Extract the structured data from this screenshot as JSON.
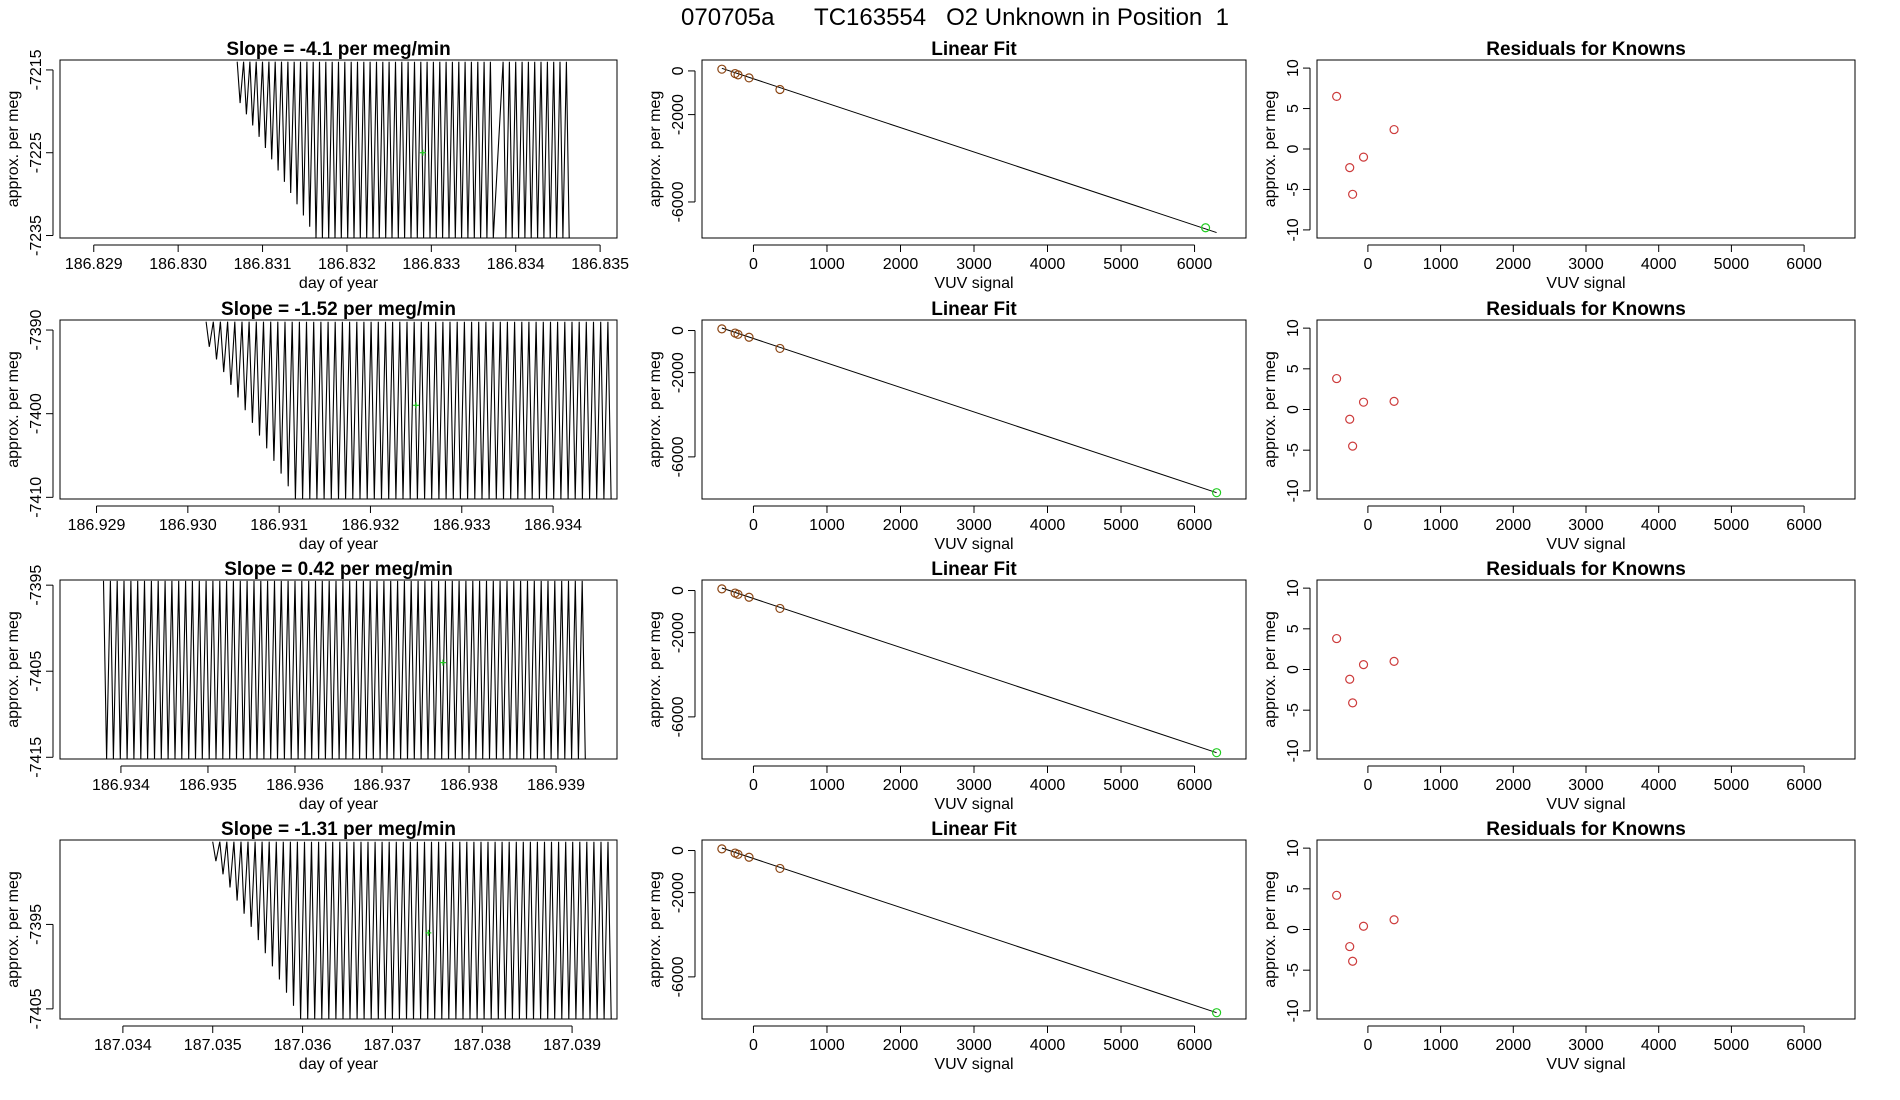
{
  "page": {
    "title": "070705a      TC163554   O2 Unknown in Position  1"
  },
  "colors": {
    "trace": "#000000",
    "known_points": "#8B4513",
    "residual_points": "#cd3c3c",
    "unknown_point": "#22cc22"
  },
  "chart_data": [
    {
      "type": "line",
      "role": "trace",
      "title": "Slope =  -4.1  per meg/min",
      "xlabel": "day of year",
      "ylabel": "approx. per meg",
      "xlim": [
        186.8286,
        186.8352
      ],
      "ylim": [
        -7235.3,
        -7213.8
      ],
      "x_ticks": [
        186.829,
        186.83,
        186.831,
        186.832,
        186.833,
        186.834,
        186.835
      ],
      "x_tick_labels": [
        "186.829",
        "186.830",
        "186.831",
        "186.832",
        "186.833",
        "186.834",
        "186.835"
      ],
      "y_ticks": [
        -7235,
        -7225,
        -7215
      ],
      "y_tick_labels": [
        "-7235",
        "-7225",
        "-7215"
      ],
      "trace_x_range": [
        186.8307,
        186.8346
      ],
      "trace_gap": [
        186.8337,
        186.8338
      ],
      "cycles": 52,
      "trace_top": -7214.0,
      "trace_bottom_min": -7235.3,
      "trace_bottom_start": -7219.0,
      "marker": {
        "x": 186.8329,
        "y": -7225.0
      }
    },
    {
      "type": "scatter",
      "role": "fit",
      "title": "Linear Fit",
      "xlabel": "VUV signal",
      "ylabel": "approx. per meg",
      "xlim": [
        -700,
        6700
      ],
      "ylim": [
        -7650,
        500
      ],
      "x_ticks": [
        0,
        1000,
        2000,
        3000,
        4000,
        5000,
        6000
      ],
      "x_tick_labels": [
        "0",
        "1000",
        "2000",
        "3000",
        "4000",
        "5000",
        "6000"
      ],
      "y_ticks": [
        -6000,
        -2000,
        0
      ],
      "y_tick_labels": [
        "-6000",
        "-2000",
        "0"
      ],
      "line": [
        [
          -430,
          120
        ],
        [
          6300,
          -7400
        ]
      ],
      "known_points": [
        [
          -430,
          80
        ],
        [
          -250,
          -120
        ],
        [
          -210,
          -180
        ],
        [
          -60,
          -320
        ],
        [
          360,
          -850
        ]
      ],
      "unknown_point": [
        6150,
        -7180
      ]
    },
    {
      "type": "scatter",
      "role": "residuals",
      "title": "Residuals for Knowns",
      "xlabel": "VUV signal",
      "ylabel": "approx. per meg",
      "xlim": [
        -700,
        6700
      ],
      "ylim": [
        -11,
        11
      ],
      "x_ticks": [
        0,
        1000,
        2000,
        3000,
        4000,
        5000,
        6000
      ],
      "x_tick_labels": [
        "0",
        "1000",
        "2000",
        "3000",
        "4000",
        "5000",
        "6000"
      ],
      "y_ticks": [
        -10,
        -5,
        0,
        5,
        10
      ],
      "y_tick_labels": [
        "-10",
        "-5",
        "0",
        "5",
        "10"
      ],
      "points": [
        [
          -430,
          6.5
        ],
        [
          -250,
          -2.3
        ],
        [
          -210,
          -5.6
        ],
        [
          -60,
          -1.0
        ],
        [
          360,
          2.4
        ]
      ]
    },
    {
      "type": "line",
      "role": "trace",
      "title": "Slope =  -1.52  per meg/min",
      "xlabel": "day of year",
      "ylabel": "approx. per meg",
      "xlim": [
        186.9286,
        186.9347
      ],
      "ylim": [
        -7410.2,
        -7388.8
      ],
      "x_ticks": [
        186.929,
        186.93,
        186.931,
        186.932,
        186.933,
        186.934
      ],
      "x_tick_labels": [
        "186.929",
        "186.930",
        "186.931",
        "186.932",
        "186.933",
        "186.934"
      ],
      "y_ticks": [
        -7410,
        -7400,
        -7390
      ],
      "y_tick_labels": [
        "-7410",
        "-7400",
        "-7390"
      ],
      "trace_x_range": [
        186.9302,
        186.9346
      ],
      "cycles": 56,
      "trace_top": -7389.0,
      "trace_bottom_min": -7410.2,
      "trace_bottom_start": -7392.0,
      "marker": {
        "x": 186.9325,
        "y": -7399.0
      }
    },
    {
      "type": "scatter",
      "role": "fit",
      "title": "Linear Fit",
      "xlabel": "VUV signal",
      "ylabel": "approx. per meg",
      "xlim": [
        -700,
        6700
      ],
      "ylim": [
        -8000,
        500
      ],
      "x_ticks": [
        0,
        1000,
        2000,
        3000,
        4000,
        5000,
        6000
      ],
      "x_tick_labels": [
        "0",
        "1000",
        "2000",
        "3000",
        "4000",
        "5000",
        "6000"
      ],
      "y_ticks": [
        -6000,
        -2000,
        0
      ],
      "y_tick_labels": [
        "-6000",
        "-2000",
        "0"
      ],
      "line": [
        [
          -430,
          120
        ],
        [
          6300,
          -7700
        ]
      ],
      "known_points": [
        [
          -430,
          80
        ],
        [
          -250,
          -120
        ],
        [
          -210,
          -180
        ],
        [
          -60,
          -320
        ],
        [
          360,
          -850
        ]
      ],
      "unknown_point": [
        6300,
        -7700
      ]
    },
    {
      "type": "scatter",
      "role": "residuals",
      "title": "Residuals for Knowns",
      "xlabel": "VUV signal",
      "ylabel": "approx. per meg",
      "xlim": [
        -700,
        6700
      ],
      "ylim": [
        -11,
        11
      ],
      "x_ticks": [
        0,
        1000,
        2000,
        3000,
        4000,
        5000,
        6000
      ],
      "x_tick_labels": [
        "0",
        "1000",
        "2000",
        "3000",
        "4000",
        "5000",
        "6000"
      ],
      "y_ticks": [
        -10,
        -5,
        0,
        5,
        10
      ],
      "y_tick_labels": [
        "-10",
        "-5",
        "0",
        "5",
        "10"
      ],
      "points": [
        [
          -430,
          3.8
        ],
        [
          -250,
          -1.2
        ],
        [
          -210,
          -4.5
        ],
        [
          -60,
          0.9
        ],
        [
          360,
          1.0
        ]
      ]
    },
    {
      "type": "line",
      "role": "trace",
      "title": "Slope =  0.42  per meg/min",
      "xlabel": "day of year",
      "ylabel": "approx. per meg",
      "xlim": [
        186.9333,
        186.9397
      ],
      "ylim": [
        -7415.2,
        -7394.4
      ],
      "x_ticks": [
        186.934,
        186.935,
        186.936,
        186.937,
        186.938,
        186.939
      ],
      "x_tick_labels": [
        "186.934",
        "186.935",
        "186.936",
        "186.937",
        "186.938",
        "186.939"
      ],
      "y_ticks": [
        -7415,
        -7405,
        -7395
      ],
      "y_tick_labels": [
        "-7415",
        "-7405",
        "-7395"
      ],
      "trace_x_range": [
        186.9338,
        186.9393
      ],
      "cycles": 70,
      "trace_top": -7394.5,
      "trace_bottom_min": -7415.2,
      "trace_bottom_start": -7415.2,
      "marker": {
        "x": 186.9377,
        "y": -7404.0
      }
    },
    {
      "type": "scatter",
      "role": "fit",
      "title": "Linear Fit",
      "xlabel": "VUV signal",
      "ylabel": "approx. per meg",
      "xlim": [
        -700,
        6700
      ],
      "ylim": [
        -8000,
        500
      ],
      "x_ticks": [
        0,
        1000,
        2000,
        3000,
        4000,
        5000,
        6000
      ],
      "x_tick_labels": [
        "0",
        "1000",
        "2000",
        "3000",
        "4000",
        "5000",
        "6000"
      ],
      "y_ticks": [
        -6000,
        -2000,
        0
      ],
      "y_tick_labels": [
        "-6000",
        "-2000",
        "0"
      ],
      "line": [
        [
          -430,
          120
        ],
        [
          6300,
          -7700
        ]
      ],
      "known_points": [
        [
          -430,
          80
        ],
        [
          -250,
          -120
        ],
        [
          -210,
          -180
        ],
        [
          -60,
          -320
        ],
        [
          360,
          -850
        ]
      ],
      "unknown_point": [
        6300,
        -7700
      ]
    },
    {
      "type": "scatter",
      "role": "residuals",
      "title": "Residuals for Knowns",
      "xlabel": "VUV signal",
      "ylabel": "approx. per meg",
      "xlim": [
        -700,
        6700
      ],
      "ylim": [
        -11,
        11
      ],
      "x_ticks": [
        0,
        1000,
        2000,
        3000,
        4000,
        5000,
        6000
      ],
      "x_tick_labels": [
        "0",
        "1000",
        "2000",
        "3000",
        "4000",
        "5000",
        "6000"
      ],
      "y_ticks": [
        -10,
        -5,
        0,
        5,
        10
      ],
      "y_tick_labels": [
        "-10",
        "-5",
        "0",
        "5",
        "10"
      ],
      "points": [
        [
          -430,
          3.8
        ],
        [
          -250,
          -1.2
        ],
        [
          -210,
          -4.1
        ],
        [
          -60,
          0.6
        ],
        [
          360,
          1.0
        ]
      ]
    },
    {
      "type": "line",
      "role": "trace",
      "title": "Slope =  -1.31  per meg/min",
      "xlabel": "day of year",
      "ylabel": "approx. per meg",
      "xlim": [
        187.0333,
        187.0395
      ],
      "ylim": [
        -7406.2,
        -7385.0
      ],
      "x_ticks": [
        187.034,
        187.035,
        187.036,
        187.037,
        187.038,
        187.039
      ],
      "x_tick_labels": [
        "187.034",
        "187.035",
        "187.036",
        "187.037",
        "187.038",
        "187.039"
      ],
      "y_ticks": [
        -7405,
        -7395
      ],
      "y_tick_labels": [
        "-7405",
        "-7395"
      ],
      "trace_x_range": [
        187.035,
        187.0394
      ],
      "cycles": 56,
      "trace_top": -7385.2,
      "trace_bottom_min": -7406.2,
      "trace_bottom_start": -7387.5,
      "marker": {
        "x": 187.0374,
        "y": -7396.0
      }
    },
    {
      "type": "scatter",
      "role": "fit",
      "title": "Linear Fit",
      "xlabel": "VUV signal",
      "ylabel": "approx. per meg",
      "xlim": [
        -700,
        6700
      ],
      "ylim": [
        -8000,
        500
      ],
      "x_ticks": [
        0,
        1000,
        2000,
        3000,
        4000,
        5000,
        6000
      ],
      "x_tick_labels": [
        "0",
        "1000",
        "2000",
        "3000",
        "4000",
        "5000",
        "6000"
      ],
      "y_ticks": [
        -6000,
        -2000,
        0
      ],
      "y_tick_labels": [
        "-6000",
        "-2000",
        "0"
      ],
      "line": [
        [
          -430,
          120
        ],
        [
          6300,
          -7700
        ]
      ],
      "known_points": [
        [
          -430,
          80
        ],
        [
          -250,
          -120
        ],
        [
          -210,
          -180
        ],
        [
          -60,
          -320
        ],
        [
          360,
          -850
        ]
      ],
      "unknown_point": [
        6300,
        -7700
      ]
    },
    {
      "type": "scatter",
      "role": "residuals",
      "title": "Residuals for Knowns",
      "xlabel": "VUV signal",
      "ylabel": "approx. per meg",
      "xlim": [
        -700,
        6700
      ],
      "ylim": [
        -11,
        11
      ],
      "x_ticks": [
        0,
        1000,
        2000,
        3000,
        4000,
        5000,
        6000
      ],
      "x_tick_labels": [
        "0",
        "1000",
        "2000",
        "3000",
        "4000",
        "5000",
        "6000"
      ],
      "y_ticks": [
        -10,
        -5,
        0,
        5,
        10
      ],
      "y_tick_labels": [
        "-10",
        "-5",
        "0",
        "5",
        "10"
      ],
      "points": [
        [
          -430,
          4.2
        ],
        [
          -250,
          -2.1
        ],
        [
          -210,
          -3.9
        ],
        [
          -60,
          0.4
        ],
        [
          360,
          1.2
        ]
      ]
    }
  ]
}
